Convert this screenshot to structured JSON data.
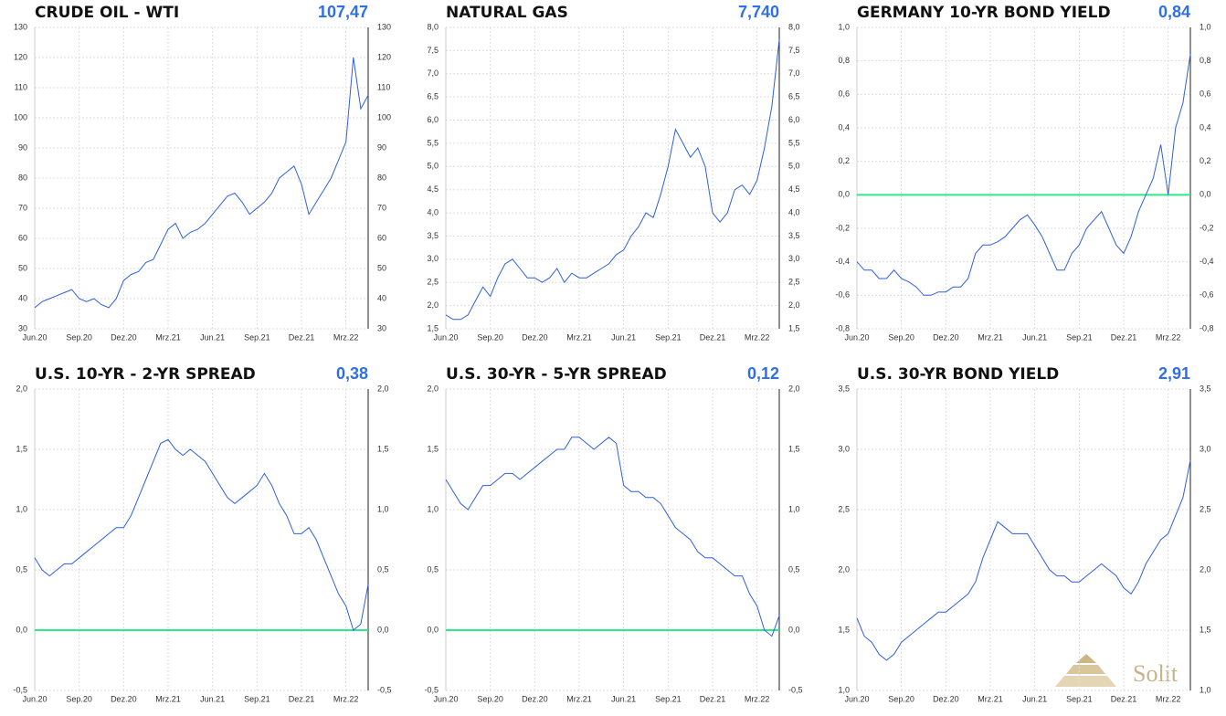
{
  "logo": "Solit",
  "chart_data": [
    {
      "type": "line",
      "title": "CRUDE OIL - WTI",
      "current_label": "107,47",
      "color": "#2f5fe0",
      "categories": [
        "Jun.20",
        null,
        null,
        null,
        null,
        null,
        "Sep.20",
        null,
        null,
        null,
        null,
        null,
        "Dez.20",
        null,
        null,
        null,
        null,
        null,
        "Mrz.21",
        null,
        null,
        null,
        null,
        null,
        "Jun.21",
        null,
        null,
        null,
        null,
        null,
        "Sep.21",
        null,
        null,
        null,
        null,
        null,
        "Dez.21",
        null,
        null,
        null,
        null,
        null,
        "Mrz.22",
        null,
        null,
        null
      ],
      "values": [
        37,
        39,
        40,
        41,
        42,
        43,
        40,
        39,
        40,
        38,
        37,
        40,
        46,
        48,
        49,
        52,
        53,
        58,
        63,
        65,
        60,
        62,
        63,
        65,
        68,
        71,
        74,
        75,
        72,
        68,
        70,
        72,
        75,
        80,
        82,
        84,
        78,
        68,
        72,
        76,
        80,
        86,
        92,
        120,
        103,
        107.47
      ],
      "ylim": [
        30,
        130
      ],
      "yticks": [
        30,
        40,
        50,
        60,
        70,
        80,
        90,
        100,
        110,
        120,
        130
      ]
    },
    {
      "type": "line",
      "title": "NATURAL GAS",
      "current_label": "7,740",
      "color": "#2f5fe0",
      "categories": [
        "Jun.20",
        null,
        null,
        null,
        null,
        null,
        "Sep.20",
        null,
        null,
        null,
        null,
        null,
        "Dez.20",
        null,
        null,
        null,
        null,
        null,
        "Mrz.21",
        null,
        null,
        null,
        null,
        null,
        "Jun.21",
        null,
        null,
        null,
        null,
        null,
        "Sep.21",
        null,
        null,
        null,
        null,
        null,
        "Dez.21",
        null,
        null,
        null,
        null,
        null,
        "Mrz.22",
        null,
        null,
        null
      ],
      "values": [
        1.8,
        1.7,
        1.7,
        1.8,
        2.1,
        2.4,
        2.2,
        2.6,
        2.9,
        3.0,
        2.8,
        2.6,
        2.6,
        2.5,
        2.6,
        2.8,
        2.5,
        2.7,
        2.6,
        2.6,
        2.7,
        2.8,
        2.9,
        3.1,
        3.2,
        3.5,
        3.7,
        4.0,
        3.9,
        4.4,
        5.0,
        5.8,
        5.5,
        5.2,
        5.4,
        5.0,
        4.0,
        3.8,
        4.0,
        4.5,
        4.6,
        4.4,
        4.7,
        5.4,
        6.3,
        7.74
      ],
      "ylim": [
        1.5,
        8.0
      ],
      "yticks": [
        {
          "value": 1.5,
          "label": "1,5"
        },
        {
          "value": 2.0,
          "label": "2,0"
        },
        {
          "value": 2.5,
          "label": "2,5"
        },
        {
          "value": 3.0,
          "label": "3,0"
        },
        {
          "value": 3.5,
          "label": "3,5"
        },
        {
          "value": 4.0,
          "label": "4,0"
        },
        {
          "value": 4.5,
          "label": "4,5"
        },
        {
          "value": 5.0,
          "label": "5,0"
        },
        {
          "value": 5.5,
          "label": "5,5"
        },
        {
          "value": 6.0,
          "label": "6,0"
        },
        {
          "value": 6.5,
          "label": "6,5"
        },
        {
          "value": 7.0,
          "label": "7,0"
        },
        {
          "value": 7.5,
          "label": "7,5"
        },
        {
          "value": 8.0,
          "label": "8,0"
        }
      ]
    },
    {
      "type": "line",
      "title": "GERMANY 10-YR BOND YIELD",
      "current_label": "0,84",
      "color": "#2f5fe0",
      "categories": [
        "Jun.20",
        null,
        null,
        null,
        null,
        null,
        "Sep.20",
        null,
        null,
        null,
        null,
        null,
        "Dez.20",
        null,
        null,
        null,
        null,
        null,
        "Mrz.21",
        null,
        null,
        null,
        null,
        null,
        "Jun.21",
        null,
        null,
        null,
        null,
        null,
        "Sep.21",
        null,
        null,
        null,
        null,
        null,
        "Dez.21",
        null,
        null,
        null,
        null,
        null,
        "Mrz.22",
        null,
        null,
        null
      ],
      "values": [
        -0.4,
        -0.45,
        -0.45,
        -0.5,
        -0.5,
        -0.45,
        -0.5,
        -0.52,
        -0.55,
        -0.6,
        -0.6,
        -0.58,
        -0.58,
        -0.55,
        -0.55,
        -0.5,
        -0.35,
        -0.3,
        -0.3,
        -0.28,
        -0.25,
        -0.2,
        -0.15,
        -0.12,
        -0.18,
        -0.25,
        -0.35,
        -0.45,
        -0.45,
        -0.35,
        -0.3,
        -0.2,
        -0.15,
        -0.1,
        -0.2,
        -0.3,
        -0.35,
        -0.25,
        -0.1,
        0.0,
        0.1,
        0.3,
        0.0,
        0.4,
        0.55,
        0.84
      ],
      "ylim": [
        -0.8,
        1.0
      ],
      "yticks": [
        {
          "value": -0.8,
          "label": "-0,8"
        },
        {
          "value": -0.6,
          "label": "-0,6"
        },
        {
          "value": -0.4,
          "label": "-0,4"
        },
        {
          "value": -0.2,
          "label": "-0,2"
        },
        {
          "value": 0,
          "label": "0,0"
        },
        {
          "value": 0.2,
          "label": "0,2"
        },
        {
          "value": 0.4,
          "label": "0,4"
        },
        {
          "value": 0.6,
          "label": "0,6"
        },
        {
          "value": 0.8,
          "label": "0,8"
        },
        {
          "value": 1.0,
          "label": "1,0"
        }
      ],
      "reference_line": {
        "value": 0,
        "color": "#2ee88a"
      }
    },
    {
      "type": "line",
      "title": "U.S. 10-YR - 2-YR SPREAD",
      "current_label": "0,38",
      "color": "#2f5fe0",
      "categories": [
        "Jun.20",
        null,
        null,
        null,
        null,
        null,
        "Sep.20",
        null,
        null,
        null,
        null,
        null,
        "Dez.20",
        null,
        null,
        null,
        null,
        null,
        "Mrz.21",
        null,
        null,
        null,
        null,
        null,
        "Jun.21",
        null,
        null,
        null,
        null,
        null,
        "Sep.21",
        null,
        null,
        null,
        null,
        null,
        "Dez.21",
        null,
        null,
        null,
        null,
        null,
        "Mrz.22",
        null,
        null,
        null
      ],
      "values": [
        0.6,
        0.5,
        0.45,
        0.5,
        0.55,
        0.55,
        0.6,
        0.65,
        0.7,
        0.75,
        0.8,
        0.85,
        0.85,
        0.95,
        1.1,
        1.25,
        1.4,
        1.55,
        1.58,
        1.5,
        1.45,
        1.5,
        1.45,
        1.4,
        1.3,
        1.2,
        1.1,
        1.05,
        1.1,
        1.15,
        1.2,
        1.3,
        1.2,
        1.05,
        0.95,
        0.8,
        0.8,
        0.85,
        0.75,
        0.6,
        0.45,
        0.3,
        0.2,
        0.0,
        0.05,
        0.38
      ],
      "ylim": [
        -0.5,
        2.0
      ],
      "yticks": [
        {
          "value": -0.5,
          "label": "-0,5"
        },
        {
          "value": 0,
          "label": "0,0"
        },
        {
          "value": 0.5,
          "label": "0,5"
        },
        {
          "value": 1.0,
          "label": "1,0"
        },
        {
          "value": 1.5,
          "label": "1,5"
        },
        {
          "value": 2.0,
          "label": "2,0"
        }
      ],
      "reference_line": {
        "value": 0,
        "color": "#2ee88a"
      }
    },
    {
      "type": "line",
      "title": "U.S. 30-YR - 5-YR SPREAD",
      "current_label": "0,12",
      "color": "#2f5fe0",
      "categories": [
        "Jun.20",
        null,
        null,
        null,
        null,
        null,
        "Sep.20",
        null,
        null,
        null,
        null,
        null,
        "Dez.20",
        null,
        null,
        null,
        null,
        null,
        "Mrz.21",
        null,
        null,
        null,
        null,
        null,
        "Jun.21",
        null,
        null,
        null,
        null,
        null,
        "Sep.21",
        null,
        null,
        null,
        null,
        null,
        "Dez.21",
        null,
        null,
        null,
        null,
        null,
        "Mrz.22",
        null,
        null,
        null
      ],
      "values": [
        1.25,
        1.15,
        1.05,
        1.0,
        1.1,
        1.2,
        1.2,
        1.25,
        1.3,
        1.3,
        1.25,
        1.3,
        1.35,
        1.4,
        1.45,
        1.5,
        1.5,
        1.6,
        1.6,
        1.55,
        1.5,
        1.55,
        1.6,
        1.55,
        1.2,
        1.15,
        1.15,
        1.1,
        1.1,
        1.05,
        0.95,
        0.85,
        0.8,
        0.75,
        0.65,
        0.6,
        0.6,
        0.55,
        0.5,
        0.45,
        0.45,
        0.3,
        0.2,
        0.0,
        -0.05,
        0.12
      ],
      "ylim": [
        -0.5,
        2.0
      ],
      "yticks": [
        {
          "value": -0.5,
          "label": "-0,5"
        },
        {
          "value": 0,
          "label": "0,0"
        },
        {
          "value": 0.5,
          "label": "0,5"
        },
        {
          "value": 1.0,
          "label": "1,0"
        },
        {
          "value": 1.5,
          "label": "1,5"
        },
        {
          "value": 2.0,
          "label": "2,0"
        }
      ],
      "reference_line": {
        "value": 0,
        "color": "#2ee88a"
      }
    },
    {
      "type": "line",
      "title": "U.S. 30-YR BOND YIELD",
      "current_label": "2,91",
      "color": "#2f5fe0",
      "categories": [
        "Jun.20",
        null,
        null,
        null,
        null,
        null,
        "Sep.20",
        null,
        null,
        null,
        null,
        null,
        "Dez.20",
        null,
        null,
        null,
        null,
        null,
        "Mrz.21",
        null,
        null,
        null,
        null,
        null,
        "Jun.21",
        null,
        null,
        null,
        null,
        null,
        "Sep.21",
        null,
        null,
        null,
        null,
        null,
        "Dez.21",
        null,
        null,
        null,
        null,
        null,
        "Mrz.22",
        null,
        null,
        null
      ],
      "values": [
        1.6,
        1.45,
        1.4,
        1.3,
        1.25,
        1.3,
        1.4,
        1.45,
        1.5,
        1.55,
        1.6,
        1.65,
        1.65,
        1.7,
        1.75,
        1.8,
        1.9,
        2.1,
        2.25,
        2.4,
        2.35,
        2.3,
        2.3,
        2.3,
        2.2,
        2.1,
        2.0,
        1.95,
        1.95,
        1.9,
        1.9,
        1.95,
        2.0,
        2.05,
        2.0,
        1.95,
        1.85,
        1.8,
        1.9,
        2.05,
        2.15,
        2.25,
        2.3,
        2.45,
        2.6,
        2.91
      ],
      "ylim": [
        1.0,
        3.5
      ],
      "yticks": [
        {
          "value": 1.0,
          "label": "1,0"
        },
        {
          "value": 1.5,
          "label": "1,5"
        },
        {
          "value": 2.0,
          "label": "2,0"
        },
        {
          "value": 2.5,
          "label": "2,5"
        },
        {
          "value": 3.0,
          "label": "3,0"
        },
        {
          "value": 3.5,
          "label": "3,5"
        }
      ]
    }
  ]
}
